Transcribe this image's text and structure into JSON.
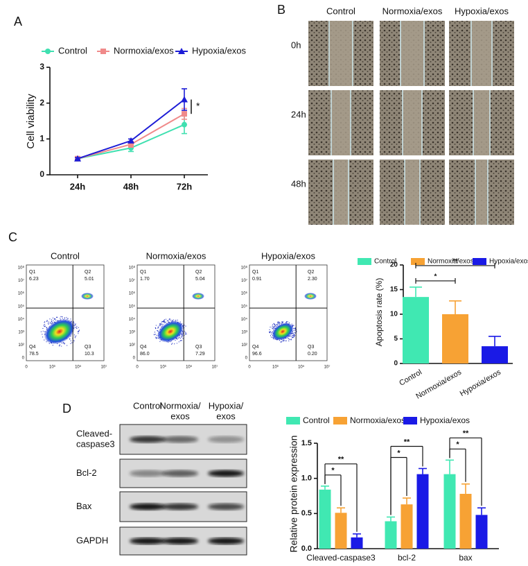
{
  "panel_labels": [
    "A",
    "B",
    "C",
    "D"
  ],
  "chart_data": [
    {
      "type": "line",
      "categories": [
        "24h",
        "48h",
        "72h"
      ],
      "y_label": "Cell viability",
      "ylim": [
        0,
        3
      ],
      "yticks": [
        0,
        1,
        2,
        3
      ],
      "series": [
        {
          "name": "Control",
          "color": "#3fe0b0",
          "marker": "circle",
          "values": [
            0.45,
            0.75,
            1.4
          ],
          "errors": [
            0.05,
            0.1,
            0.25
          ]
        },
        {
          "name": "Normoxia/exos",
          "color": "#f08a8a",
          "marker": "square",
          "values": [
            0.45,
            0.85,
            1.7
          ],
          "errors": [
            0.03,
            0.08,
            0.15
          ]
        },
        {
          "name": "Hypoxia/exos",
          "color": "#1c1cd6",
          "marker": "triangle",
          "values": [
            0.45,
            0.95,
            2.1
          ],
          "errors": [
            0.03,
            0.05,
            0.3
          ]
        }
      ],
      "annotations": [
        "*"
      ]
    },
    {
      "type": "bar",
      "categories": [
        "Control",
        "Normoxia/exos",
        "Hypoxia/exos"
      ],
      "colors": [
        "#40e8b2",
        "#f7a234",
        "#1a1ae6"
      ],
      "values": [
        13.5,
        10,
        3.5
      ],
      "errors": [
        2,
        2.7,
        2
      ],
      "y_label": "Apoptosis rate (%)",
      "ylim": [
        0,
        20
      ],
      "yticks": [
        0,
        5,
        10,
        15,
        20
      ],
      "annotations": [
        "*",
        "**"
      ]
    },
    {
      "type": "grouped_bar",
      "categories": [
        "Cleaved-caspase3",
        "bcl-2",
        "bax"
      ],
      "y_label": "Relative protein expression",
      "ylim": [
        0,
        1.5
      ],
      "yticks": [
        {
          "value": 0,
          "label": "0.0"
        },
        0.5,
        {
          "value": 1,
          "label": "1.0"
        },
        1.5
      ],
      "series": [
        {
          "name": "Control",
          "color": "#40e8b2",
          "values": [
            0.84,
            0.39,
            1.06
          ],
          "errors": [
            0.05,
            0.06,
            0.2
          ]
        },
        {
          "name": "Normoxia/exos",
          "color": "#f7a234",
          "values": [
            0.51,
            0.63,
            0.78
          ],
          "errors": [
            0.07,
            0.09,
            0.14
          ]
        },
        {
          "name": "Hypoxia/exos",
          "color": "#1a1ae6",
          "values": [
            0.16,
            1.06,
            0.48
          ],
          "errors": [
            0.05,
            0.08,
            0.1
          ]
        }
      ],
      "annotations": [
        [
          "*",
          "**"
        ],
        [
          "*",
          "**"
        ],
        [
          "*",
          "**"
        ]
      ]
    }
  ],
  "wound_healing": {
    "columns": [
      "Control",
      "Normoxia/exos",
      "Hypoxia/exos"
    ],
    "rows": [
      "0h",
      "24h",
      "48h"
    ]
  },
  "flow_cytometry": {
    "y_ticks": [
      "10⁸",
      "10⁷",
      "10⁶",
      "10⁵",
      "10⁴",
      "10³",
      "10²",
      "0"
    ],
    "x_ticks": [
      "0",
      "10³",
      "10⁵",
      "10⁷"
    ],
    "plots": [
      {
        "title": "Control",
        "quadrants": [
          {
            "label": "Q1",
            "value": "6.23"
          },
          {
            "label": "Q2",
            "value": "5.01"
          },
          {
            "label": "Q3",
            "value": "10.3"
          },
          {
            "label": "Q4",
            "value": "78.5"
          }
        ]
      },
      {
        "title": "Normoxia/exos",
        "quadrants": [
          {
            "label": "Q1",
            "value": "1.70"
          },
          {
            "label": "Q2",
            "value": "5.04"
          },
          {
            "label": "Q3",
            "value": "7.29"
          },
          {
            "label": "Q4",
            "value": "86.0"
          }
        ]
      },
      {
        "title": "Hypoxia/exos",
        "quadrants": [
          {
            "label": "Q1",
            "value": "0.91"
          },
          {
            "label": "Q2",
            "value": "2.30"
          },
          {
            "label": "Q3",
            "value": "0.20"
          },
          {
            "label": "Q4",
            "value": "96.6"
          }
        ]
      }
    ]
  },
  "western_blot": {
    "lanes": [
      [
        "Control"
      ],
      [
        "Normoxia/",
        "exos"
      ],
      [
        "Hypoxia/",
        "exos"
      ]
    ],
    "proteins": [
      [
        "Cleaved-",
        "caspase3"
      ],
      [
        "Bcl-2"
      ],
      [
        "Bax"
      ],
      [
        "GAPDH"
      ]
    ]
  }
}
